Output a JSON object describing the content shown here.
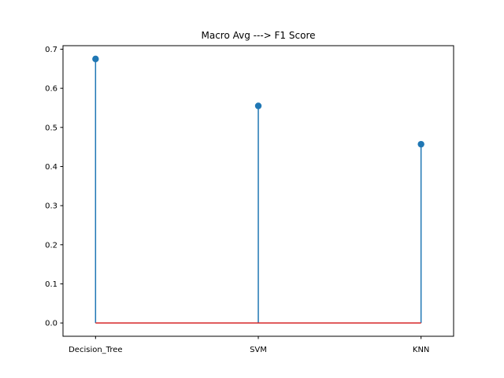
{
  "chart_data": {
    "type": "stem",
    "title": "Macro Avg ---> F1 Score",
    "xlabel": "",
    "ylabel": "",
    "categories": [
      "Decision_Tree",
      "SVM",
      "KNN"
    ],
    "values": [
      0.675,
      0.555,
      0.457
    ],
    "ylim": [
      -0.034,
      0.709
    ],
    "yticks": [
      0.0,
      0.1,
      0.2,
      0.3,
      0.4,
      0.5,
      0.6,
      0.7
    ],
    "ytick_labels": [
      "0.0",
      "0.1",
      "0.2",
      "0.3",
      "0.4",
      "0.5",
      "0.6",
      "0.7"
    ],
    "baseline": 0,
    "grid": false,
    "legend": "none",
    "colors": {
      "stem": "#1f77b4",
      "marker": "#1f77b4",
      "baseline": "#d62728",
      "axes": "#000000"
    }
  }
}
